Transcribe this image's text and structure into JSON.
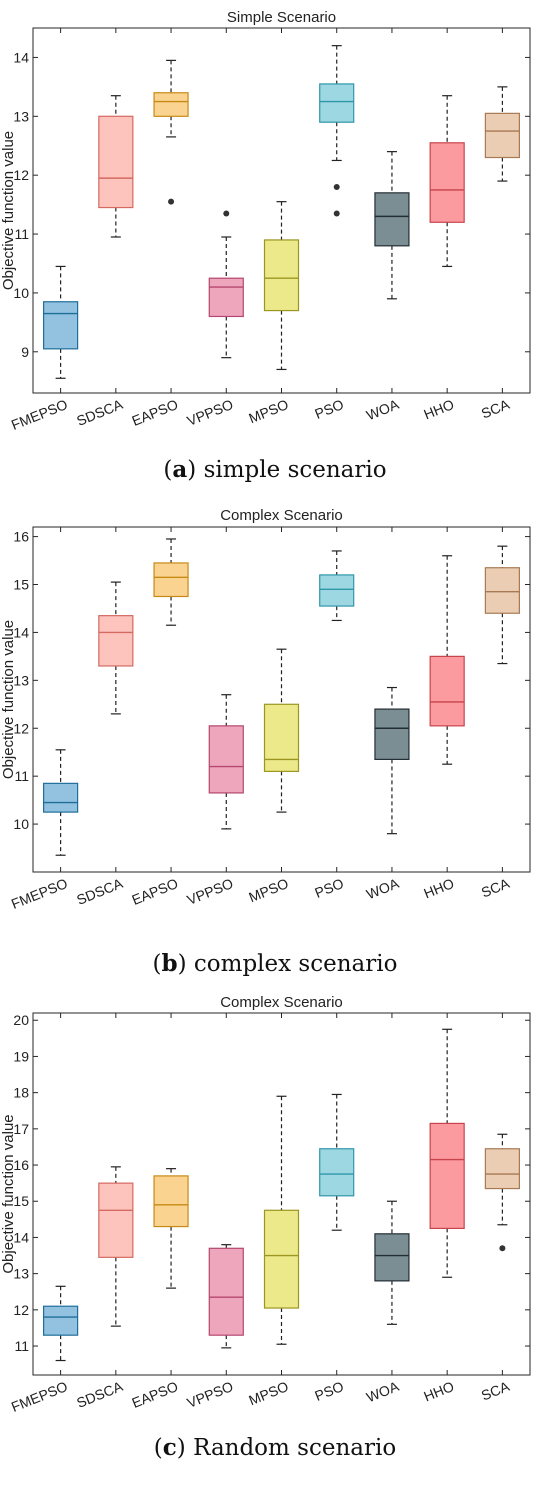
{
  "chart_data": [
    {
      "type": "box",
      "title": "Simple Scenario",
      "ylabel": "Objective function value",
      "caption_letter": "a",
      "caption_text": " simple scenario",
      "ylim": [
        8.3,
        14.5
      ],
      "yticks": [
        9,
        10,
        11,
        12,
        13,
        14
      ],
      "categories": [
        "FMEPSO",
        "SDSCA",
        "EAPSO",
        "VPPSO",
        "MPSO",
        "PSO",
        "WOA",
        "HHO",
        "SCA"
      ],
      "boxes": [
        {
          "min": 8.55,
          "q1": 9.05,
          "median": 9.65,
          "q3": 9.85,
          "max": 10.45,
          "outliers": []
        },
        {
          "min": 10.95,
          "q1": 11.45,
          "median": 11.95,
          "q3": 13.0,
          "max": 13.35,
          "outliers": []
        },
        {
          "min": 12.65,
          "q1": 13.0,
          "median": 13.25,
          "q3": 13.4,
          "max": 13.95,
          "outliers": [
            11.55
          ]
        },
        {
          "min": 8.9,
          "q1": 9.6,
          "median": 10.1,
          "q3": 10.25,
          "max": 10.95,
          "outliers": [
            11.35
          ]
        },
        {
          "min": 8.7,
          "q1": 9.7,
          "median": 10.25,
          "q3": 10.9,
          "max": 11.55,
          "outliers": []
        },
        {
          "min": 12.25,
          "q1": 12.9,
          "median": 13.25,
          "q3": 13.55,
          "max": 14.2,
          "outliers": [
            11.8,
            11.35
          ]
        },
        {
          "min": 9.9,
          "q1": 10.8,
          "median": 11.3,
          "q3": 11.7,
          "max": 12.4,
          "outliers": []
        },
        {
          "min": 10.45,
          "q1": 11.2,
          "median": 11.75,
          "q3": 12.55,
          "max": 13.35,
          "outliers": []
        },
        {
          "min": 11.9,
          "q1": 12.3,
          "median": 12.75,
          "q3": 13.05,
          "max": 13.5,
          "outliers": []
        }
      ]
    },
    {
      "type": "box",
      "title": "Complex Scenario",
      "ylabel": "Objective function value",
      "caption_letter": "b",
      "caption_text": " complex scenario",
      "ylim": [
        9.0,
        16.2
      ],
      "yticks": [
        10,
        11,
        12,
        13,
        14,
        15,
        16
      ],
      "categories": [
        "FMEPSO",
        "SDSCA",
        "EAPSO",
        "VPPSO",
        "MPSO",
        "PSO",
        "WOA",
        "HHO",
        "SCA"
      ],
      "boxes": [
        {
          "min": 9.35,
          "q1": 10.25,
          "median": 10.45,
          "q3": 10.85,
          "max": 11.55,
          "outliers": []
        },
        {
          "min": 12.3,
          "q1": 13.3,
          "median": 14.0,
          "q3": 14.35,
          "max": 15.05,
          "outliers": []
        },
        {
          "min": 14.15,
          "q1": 14.75,
          "median": 15.15,
          "q3": 15.45,
          "max": 15.95,
          "outliers": []
        },
        {
          "min": 9.9,
          "q1": 10.65,
          "median": 11.2,
          "q3": 12.05,
          "max": 12.7,
          "outliers": []
        },
        {
          "min": 10.25,
          "q1": 11.1,
          "median": 11.35,
          "q3": 12.5,
          "max": 13.65,
          "outliers": []
        },
        {
          "min": 14.25,
          "q1": 14.55,
          "median": 14.9,
          "q3": 15.2,
          "max": 15.7,
          "outliers": []
        },
        {
          "min": 9.8,
          "q1": 11.35,
          "median": 12.0,
          "q3": 12.4,
          "max": 12.85,
          "outliers": []
        },
        {
          "min": 11.25,
          "q1": 12.05,
          "median": 12.55,
          "q3": 13.5,
          "max": 15.6,
          "outliers": []
        },
        {
          "min": 13.35,
          "q1": 14.4,
          "median": 14.85,
          "q3": 15.35,
          "max": 15.8,
          "outliers": []
        }
      ]
    },
    {
      "type": "box",
      "title": "Complex Scenario",
      "ylabel": "Objective function value",
      "caption_letter": "c",
      "caption_text": " Random scenario",
      "ylim": [
        10.2,
        20.2
      ],
      "yticks": [
        11,
        12,
        13,
        14,
        15,
        16,
        17,
        18,
        19,
        20
      ],
      "categories": [
        "FMEPSO",
        "SDSCA",
        "EAPSO",
        "VPPSO",
        "MPSO",
        "PSO",
        "WOA",
        "HHO",
        "SCA"
      ],
      "boxes": [
        {
          "min": 10.6,
          "q1": 11.3,
          "median": 11.8,
          "q3": 12.1,
          "max": 12.65,
          "outliers": []
        },
        {
          "min": 11.55,
          "q1": 13.45,
          "median": 14.75,
          "q3": 15.5,
          "max": 15.95,
          "outliers": []
        },
        {
          "min": 12.6,
          "q1": 14.3,
          "median": 14.9,
          "q3": 15.7,
          "max": 15.9,
          "outliers": []
        },
        {
          "min": 10.95,
          "q1": 11.3,
          "median": 12.35,
          "q3": 13.7,
          "max": 13.8,
          "outliers": []
        },
        {
          "min": 11.05,
          "q1": 12.05,
          "median": 13.5,
          "q3": 14.75,
          "max": 17.9,
          "outliers": []
        },
        {
          "min": 14.2,
          "q1": 15.15,
          "median": 15.75,
          "q3": 16.45,
          "max": 17.95,
          "outliers": []
        },
        {
          "min": 11.6,
          "q1": 12.8,
          "median": 13.5,
          "q3": 14.1,
          "max": 15.0,
          "outliers": []
        },
        {
          "min": 12.9,
          "q1": 14.25,
          "median": 16.15,
          "q3": 17.15,
          "max": 19.75,
          "outliers": []
        },
        {
          "min": 14.35,
          "q1": 15.35,
          "median": 15.75,
          "q3": 16.45,
          "max": 16.85,
          "outliers": [
            13.7
          ]
        }
      ]
    }
  ],
  "colors": {
    "fills": [
      "#92c2df",
      "#fcc4bc",
      "#fad391",
      "#eea6bc",
      "#ece98a",
      "#9dd7e1",
      "#7b8e94",
      "#fb9b9f",
      "#eacdb3"
    ],
    "edges": [
      "#1f6e9a",
      "#d56a62",
      "#c88a16",
      "#b54670",
      "#9c9620",
      "#2f97aa",
      "#222e33",
      "#c8434b",
      "#a77a55"
    ],
    "axis": "#262626",
    "whisker": "#222222"
  }
}
